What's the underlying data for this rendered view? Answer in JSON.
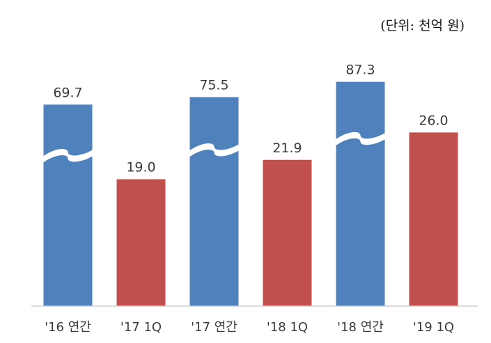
{
  "unit_label": "(단위: 천억 원)",
  "chart_data": {
    "type": "bar",
    "categories": [
      "'16 연간",
      "'17 1Q",
      "'17 연간",
      "'18 1Q",
      "'18 연간",
      "'19 1Q"
    ],
    "values": [
      69.7,
      19.0,
      75.5,
      21.9,
      87.3,
      26.0
    ],
    "value_labels": [
      "69.7",
      "19.0",
      "75.5",
      "21.9",
      "87.3",
      "26.0"
    ],
    "axis_break": [
      true,
      false,
      true,
      false,
      true,
      false
    ],
    "colors": [
      "#4f81bd",
      "#c0504d",
      "#4f81bd",
      "#c0504d",
      "#4f81bd",
      "#c0504d"
    ],
    "title": "",
    "xlabel": "",
    "ylabel": "",
    "legend": "none",
    "grid": false
  }
}
